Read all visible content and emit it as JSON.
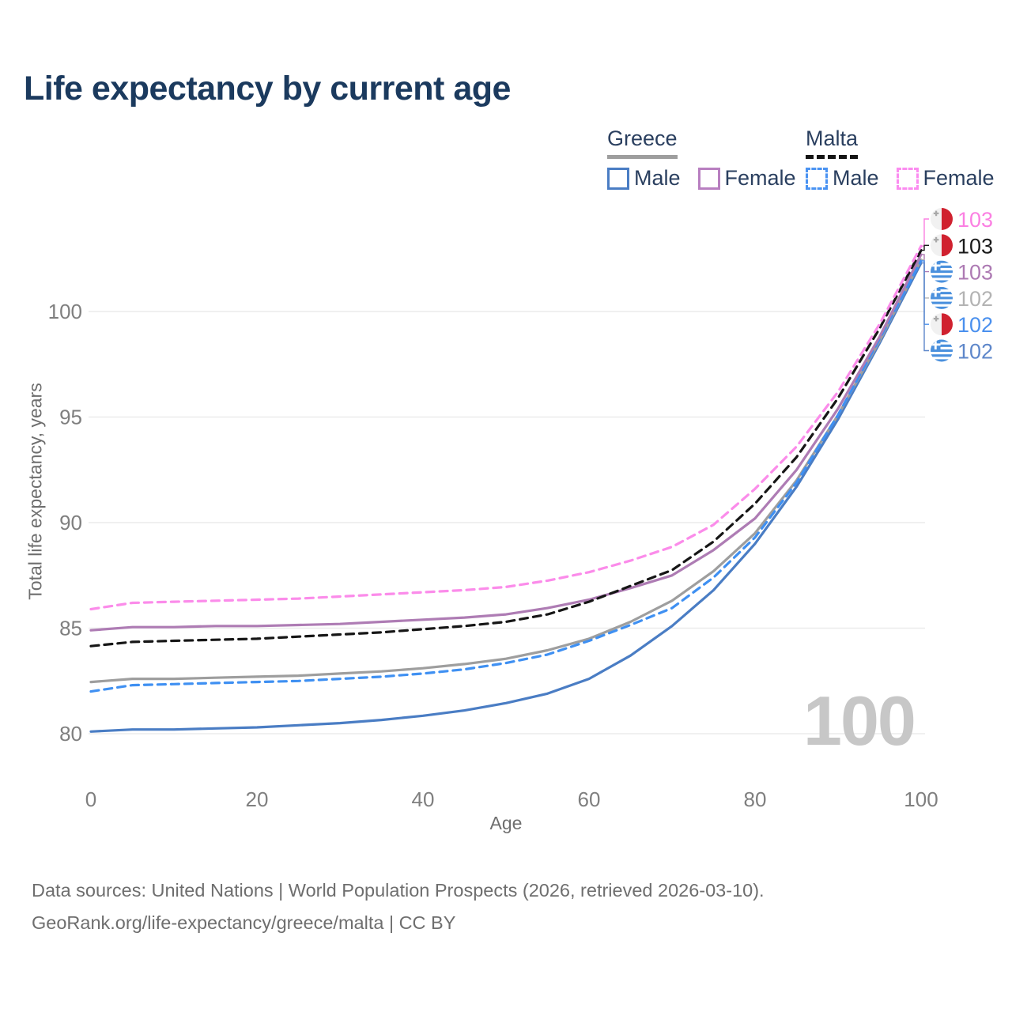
{
  "page": {
    "title": "Life expectancy by current age",
    "watermark": "100",
    "footer_line1": "Data sources: United Nations | World Population Prospects (2026, retrieved 2026-03-10).",
    "footer_line2": "GeoRank.org/life-expectancy/greece/malta | CC BY"
  },
  "legend": {
    "groups": [
      {
        "name": "Greece",
        "underline_style": "solid",
        "underline_color": "#9e9e9e",
        "items": [
          {
            "label": "Male",
            "color": "#4a7dc4",
            "dash": false
          },
          {
            "label": "Female",
            "color": "#b87fc0",
            "dash": false
          }
        ]
      },
      {
        "name": "Malta",
        "underline_style": "dashed",
        "underline_color": "#141414",
        "items": [
          {
            "label": "Male",
            "color": "#4a93f2",
            "dash": true
          },
          {
            "label": "Female",
            "color": "#fb8cf0",
            "dash": true
          }
        ]
      }
    ]
  },
  "chart_data": {
    "type": "line",
    "title": "Life expectancy by current age",
    "xlabel": "Age",
    "ylabel": "Total life expectancy, years",
    "xlim": [
      0,
      100
    ],
    "ylim": [
      79,
      104
    ],
    "xticks": [
      0,
      20,
      40,
      60,
      80,
      100
    ],
    "yticks": [
      80,
      85,
      90,
      95,
      100
    ],
    "grid": "horizontal",
    "legend_position": "top-right",
    "x": [
      0,
      5,
      10,
      15,
      20,
      25,
      30,
      35,
      40,
      45,
      50,
      55,
      60,
      65,
      70,
      75,
      80,
      85,
      90,
      95,
      100
    ],
    "series": [
      {
        "id": "greece_male",
        "name": "Greece Male",
        "country": "Greece",
        "sex": "Male",
        "color": "#4a7dc4",
        "dash": false,
        "values": [
          80.1,
          80.2,
          80.2,
          80.25,
          80.3,
          80.4,
          80.5,
          80.65,
          80.85,
          81.1,
          81.45,
          81.9,
          82.6,
          83.7,
          85.1,
          86.8,
          89.0,
          91.7,
          94.9,
          98.5,
          102.3
        ]
      },
      {
        "id": "greece_total",
        "name": "Greece Total",
        "country": "Greece",
        "sex": "Total",
        "color": "#9e9e9e",
        "dash": false,
        "values": [
          82.45,
          82.6,
          82.6,
          82.65,
          82.7,
          82.75,
          82.85,
          82.95,
          83.1,
          83.3,
          83.55,
          83.95,
          84.5,
          85.3,
          86.3,
          87.7,
          89.5,
          92.0,
          95.1,
          98.6,
          102.45
        ]
      },
      {
        "id": "malta_male",
        "name": "Malta Male",
        "country": "Malta",
        "sex": "Male",
        "color": "#3f90f2",
        "dash": true,
        "values": [
          82.0,
          82.3,
          82.35,
          82.4,
          82.45,
          82.5,
          82.6,
          82.7,
          82.85,
          83.05,
          83.35,
          83.75,
          84.4,
          85.15,
          85.95,
          87.4,
          89.3,
          91.9,
          95.1,
          98.7,
          102.4
        ]
      },
      {
        "id": "greece_female",
        "name": "Greece Female",
        "country": "Greece",
        "sex": "Female",
        "color": "#ae7cb4",
        "dash": false,
        "values": [
          84.9,
          85.05,
          85.05,
          85.1,
          85.1,
          85.15,
          85.2,
          85.3,
          85.4,
          85.5,
          85.65,
          85.95,
          86.35,
          86.9,
          87.5,
          88.7,
          90.2,
          92.5,
          95.4,
          98.8,
          102.7
        ]
      },
      {
        "id": "malta_total",
        "name": "Malta Total",
        "country": "Malta",
        "sex": "Total",
        "color": "#161616",
        "dash": true,
        "values": [
          84.15,
          84.35,
          84.4,
          84.45,
          84.5,
          84.6,
          84.7,
          84.8,
          84.95,
          85.1,
          85.3,
          85.65,
          86.25,
          87.0,
          87.75,
          89.1,
          90.9,
          93.1,
          95.9,
          99.2,
          102.9
        ]
      },
      {
        "id": "malta_female",
        "name": "Malta Female",
        "country": "Malta",
        "sex": "Female",
        "color": "#fb8cea",
        "dash": true,
        "values": [
          85.9,
          86.2,
          86.25,
          86.3,
          86.35,
          86.4,
          86.5,
          86.6,
          86.7,
          86.8,
          86.95,
          87.25,
          87.65,
          88.2,
          88.85,
          89.9,
          91.6,
          93.6,
          96.2,
          99.4,
          103.1
        ]
      }
    ],
    "end_labels": [
      {
        "series": "malta_female",
        "text": "103",
        "flag": "malta",
        "color": "#fb80e2"
      },
      {
        "series": "malta_total",
        "text": "103",
        "flag": "malta",
        "color": "#1a1a1a"
      },
      {
        "series": "greece_female",
        "text": "103",
        "flag": "greece",
        "color": "#ad7ab3"
      },
      {
        "series": "greece_total",
        "text": "102",
        "flag": "greece",
        "color": "#b3b3b3"
      },
      {
        "series": "malta_male",
        "text": "102",
        "flag": "malta",
        "color": "#4a90ee"
      },
      {
        "series": "greece_male",
        "text": "102",
        "flag": "greece",
        "color": "#5e87ca"
      }
    ]
  }
}
